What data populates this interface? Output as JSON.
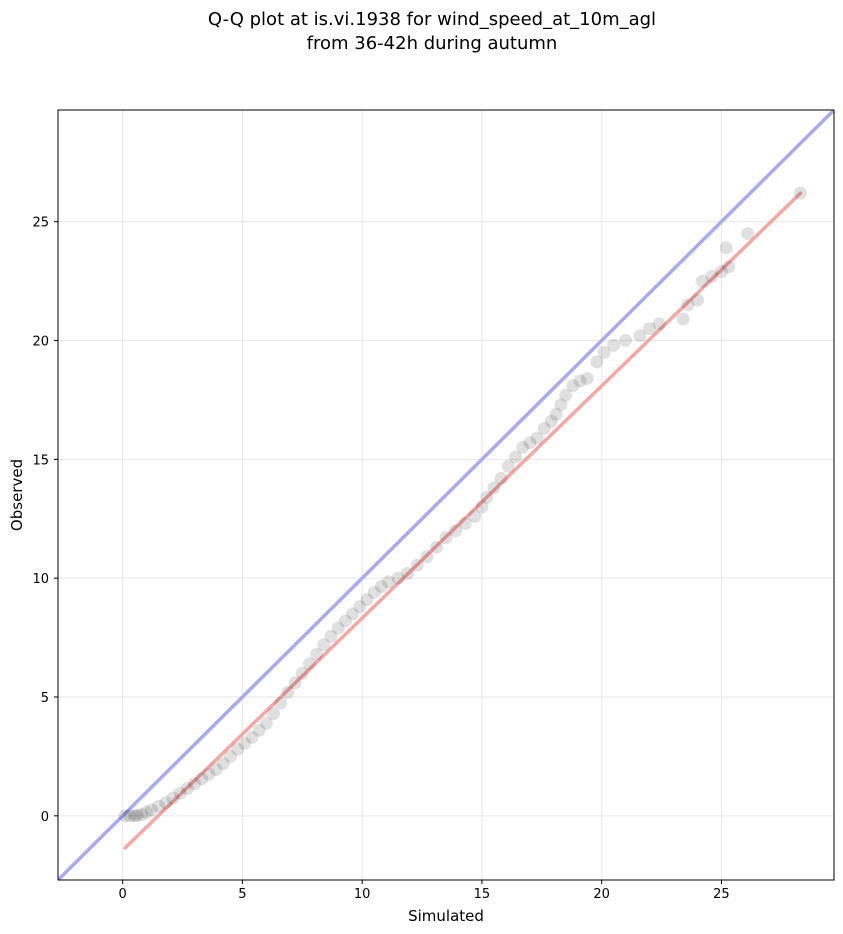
{
  "chart_data": {
    "type": "scatter",
    "title": [
      "Q-Q plot at is.vi.1938 for wind_speed_at_10m_agl",
      "from 36-42h during autumn"
    ],
    "xlabel": "Simulated",
    "ylabel": "Observed",
    "xlim": [
      -2.7,
      29.7
    ],
    "ylim": [
      -2.7,
      29.7
    ],
    "xticks": [
      0,
      5,
      10,
      15,
      20,
      25
    ],
    "yticks": [
      0,
      5,
      10,
      15,
      20,
      25
    ],
    "grid": true,
    "reference_line": {
      "name": "1:1",
      "color": "#aaaaee",
      "from": [
        -2.7,
        -2.7
      ],
      "to": [
        29.7,
        29.7
      ]
    },
    "fit_line": {
      "color": "#f4a7a7",
      "from": [
        0.1,
        -1.35
      ],
      "to": [
        28.3,
        26.2
      ]
    },
    "marker_color": "#000000",
    "series": [
      {
        "points": [
          [
            0.1,
            0.0
          ],
          [
            0.3,
            0.0
          ],
          [
            0.5,
            0.0
          ],
          [
            0.6,
            0.02
          ],
          [
            0.8,
            0.05
          ],
          [
            1.0,
            0.15
          ],
          [
            1.2,
            0.25
          ],
          [
            1.5,
            0.4
          ],
          [
            1.8,
            0.55
          ],
          [
            2.1,
            0.75
          ],
          [
            2.4,
            0.95
          ],
          [
            2.7,
            1.15
          ],
          [
            3.0,
            1.35
          ],
          [
            3.3,
            1.55
          ],
          [
            3.6,
            1.75
          ],
          [
            3.9,
            1.95
          ],
          [
            4.2,
            2.2
          ],
          [
            4.5,
            2.5
          ],
          [
            4.8,
            2.8
          ],
          [
            5.1,
            3.05
          ],
          [
            5.4,
            3.3
          ],
          [
            5.7,
            3.6
          ],
          [
            6.0,
            3.9
          ],
          [
            6.3,
            4.3
          ],
          [
            6.6,
            4.75
          ],
          [
            6.9,
            5.2
          ],
          [
            7.2,
            5.6
          ],
          [
            7.5,
            6.0
          ],
          [
            7.8,
            6.4
          ],
          [
            8.1,
            6.8
          ],
          [
            8.4,
            7.2
          ],
          [
            8.7,
            7.55
          ],
          [
            9.0,
            7.9
          ],
          [
            9.3,
            8.2
          ],
          [
            9.6,
            8.5
          ],
          [
            9.9,
            8.8
          ],
          [
            10.2,
            9.1
          ],
          [
            10.5,
            9.4
          ],
          [
            10.8,
            9.65
          ],
          [
            11.1,
            9.85
          ],
          [
            11.5,
            10.0
          ],
          [
            11.9,
            10.2
          ],
          [
            12.3,
            10.55
          ],
          [
            12.7,
            10.9
          ],
          [
            13.1,
            11.3
          ],
          [
            13.5,
            11.7
          ],
          [
            13.9,
            12.0
          ],
          [
            14.3,
            12.3
          ],
          [
            14.7,
            12.6
          ],
          [
            15.0,
            13.0
          ],
          [
            15.2,
            13.4
          ],
          [
            15.5,
            13.8
          ],
          [
            15.8,
            14.2
          ],
          [
            16.1,
            14.7
          ],
          [
            16.4,
            15.1
          ],
          [
            16.7,
            15.5
          ],
          [
            17.0,
            15.7
          ],
          [
            17.3,
            15.9
          ],
          [
            17.6,
            16.3
          ],
          [
            17.9,
            16.6
          ],
          [
            18.1,
            16.9
          ],
          [
            18.3,
            17.3
          ],
          [
            18.5,
            17.7
          ],
          [
            18.8,
            18.1
          ],
          [
            19.1,
            18.3
          ],
          [
            19.4,
            18.4
          ],
          [
            19.8,
            19.1
          ],
          [
            20.1,
            19.5
          ],
          [
            20.5,
            19.8
          ],
          [
            21.0,
            20.0
          ],
          [
            21.6,
            20.2
          ],
          [
            22.0,
            20.5
          ],
          [
            22.4,
            20.7
          ],
          [
            23.4,
            20.9
          ],
          [
            23.6,
            21.5
          ],
          [
            24.0,
            21.7
          ],
          [
            24.2,
            22.5
          ],
          [
            24.6,
            22.7
          ],
          [
            25.0,
            22.9
          ],
          [
            25.3,
            23.1
          ],
          [
            25.2,
            23.9
          ],
          [
            26.1,
            24.5
          ],
          [
            28.3,
            26.2
          ]
        ]
      }
    ]
  }
}
